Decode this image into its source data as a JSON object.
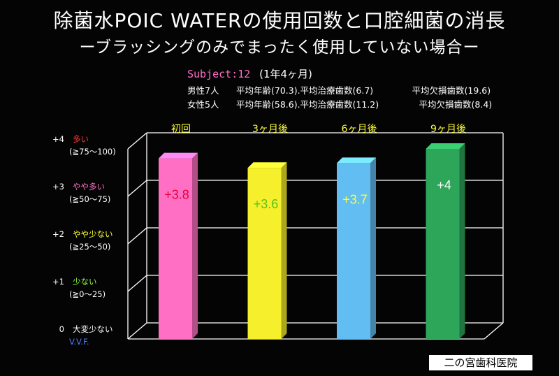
{
  "title": "除菌水POIC WATERの使用回数と口腔細菌の消長",
  "subtitle": "ーブラッシングのみでまったく使用していない場合ー",
  "subject": {
    "label": "Subject:12",
    "period": "(1年4ヶ月)",
    "male": {
      "count": "男性7人",
      "age": "平均年齢(70.3).",
      "treated": "平均治療歯数(6.7)",
      "missing": "平均欠損歯数(19.6)"
    },
    "female": {
      "count": "女性5人",
      "age": "平均年齢(58.6).",
      "treated": "平均治療歯数(11.2)",
      "missing": "平均欠損歯数(8.4)"
    }
  },
  "chart_data": {
    "type": "bar",
    "categories": [
      "初回",
      "3ヶ月後",
      "6ヶ月後",
      "9ヶ月後"
    ],
    "values": [
      3.8,
      3.6,
      3.7,
      4
    ],
    "value_labels": [
      "+3.8",
      "+3.6",
      "+3.7",
      "+4"
    ],
    "bar_colors": [
      "#ff6fc4",
      "#f5ef2c",
      "#62bdf2",
      "#2ea65a"
    ],
    "value_label_colors": [
      "#e8003c",
      "#5ac21a",
      "#ffff33",
      "#ffffff"
    ],
    "category_label_color": "#ffff33",
    "ylim": [
      0,
      4
    ],
    "grid": true,
    "y_levels": [
      {
        "value": 4,
        "code": "+4",
        "name": "多い",
        "range": "(≧75〜100)",
        "color": "#ff3b3b"
      },
      {
        "value": 3,
        "code": "+3",
        "name": "やや多い",
        "range": "(≧50〜75)",
        "color": "#ff6ec7"
      },
      {
        "value": 2,
        "code": "+2",
        "name": "やや少ない",
        "range": "(≧25〜50)",
        "color": "#ffff33"
      },
      {
        "value": 1,
        "code": "+1",
        "name": "少ない",
        "range": "(≧0〜25)",
        "color": "#8cff3a"
      },
      {
        "value": 0,
        "code": "0",
        "name": "大変少ない",
        "range": "V.V.F.",
        "color": "#ffffff",
        "range_color": "#4d7cff"
      }
    ]
  },
  "clinic": "二の宮歯科医院"
}
